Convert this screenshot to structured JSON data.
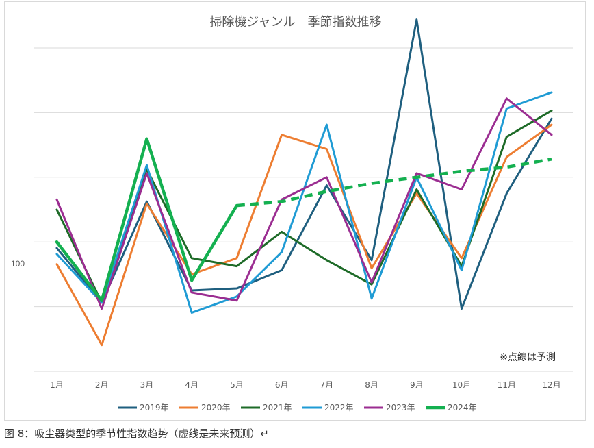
{
  "chart_data": {
    "type": "line",
    "title": "掃除機ジャンル　季節指数推移",
    "categories": [
      "1月",
      "2月",
      "3月",
      "4月",
      "5月",
      "6月",
      "7月",
      "8月",
      "9月",
      "10月",
      "11月",
      "12月"
    ],
    "y_tick_label": "100",
    "y_tick_value": 100,
    "ylim": [
      60,
      140
    ],
    "grid": true,
    "legend_position": "bottom",
    "annotation": "※点線は予測",
    "series": [
      {
        "name": "2019年",
        "color": "#1f5f7f",
        "dashed_from": null,
        "values": [
          90.5,
          77,
          102,
          80,
          80.5,
          85,
          106,
          87.5,
          147,
          75.5,
          104,
          122.5
        ]
      },
      {
        "name": "2020年",
        "color": "#ed7d31",
        "dashed_from": null,
        "values": [
          86.5,
          66.5,
          101.5,
          84,
          88,
          118.5,
          115,
          85.5,
          104,
          88,
          113,
          121
        ]
      },
      {
        "name": "2021年",
        "color": "#1e6b28",
        "dashed_from": null,
        "values": [
          100,
          77,
          110,
          88,
          86,
          94.5,
          87.5,
          81.5,
          105,
          86,
          118,
          124.5
        ]
      },
      {
        "name": "2022年",
        "color": "#1f9bd4",
        "dashed_from": null,
        "values": [
          89,
          77,
          111,
          74.5,
          78.5,
          89.5,
          121,
          78,
          108,
          85,
          125,
          129
        ]
      },
      {
        "name": "2023年",
        "color": "#9b2d91",
        "dashed_from": null,
        "values": [
          102.5,
          75.5,
          109,
          79.5,
          77.5,
          102.5,
          108,
          82,
          109,
          105,
          127.5,
          118.5
        ]
      },
      {
        "name": "2024年",
        "color": "#14b050",
        "dashed_from": 4,
        "values": [
          92,
          77.5,
          117.5,
          82.5,
          101,
          102,
          104.5,
          106.5,
          108,
          109.5,
          110.5,
          112.5
        ]
      }
    ]
  },
  "caption": "图 8：吸尘器类型的季节性指数趋势（虚线是未来预测）↵",
  "para_mark": "↵"
}
